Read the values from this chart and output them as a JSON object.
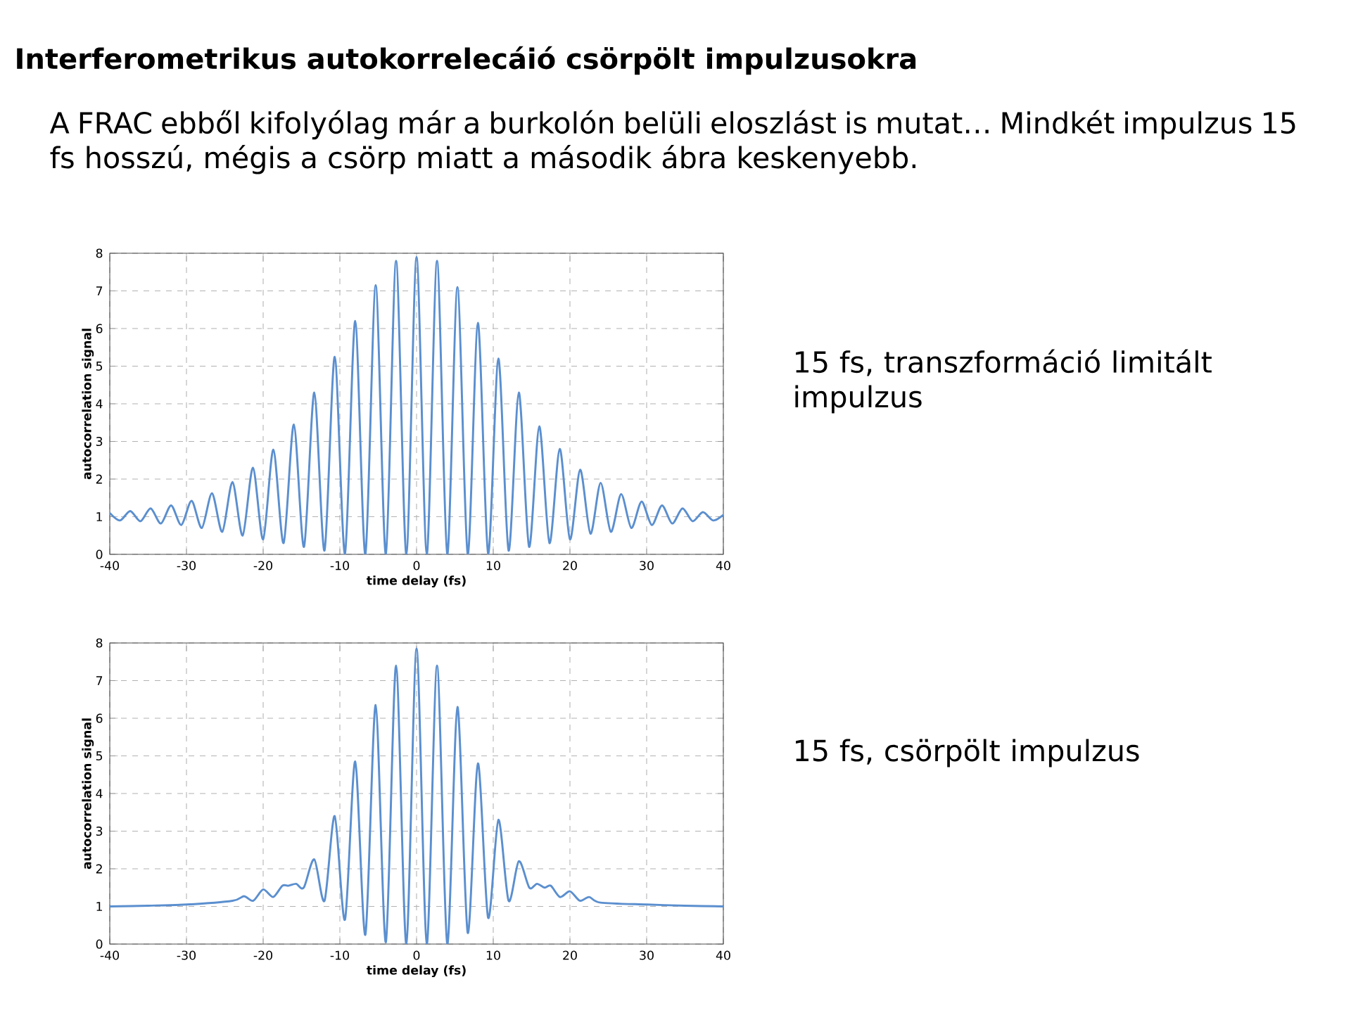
{
  "chart_data": [
    {
      "type": "line",
      "title": "Interferometrikus autokorrelecáió csörpölt impulzusokra",
      "subtitle": "A FRAC ebből kifolyólag már a burkolón belüli eloszlást is mutat… Mindkét impulzus 15 fs hosszú, mégis a csörp miatt a második ábra keskenyebb.",
      "annotations": [
        "15 fs, transzformáció limitált impulzus"
      ],
      "xlabel": "time delay (fs)",
      "ylabel": "autocorrelation signal",
      "xlim": [
        -40,
        40
      ],
      "ylim": [
        0,
        8
      ],
      "xticks": [
        -40,
        -30,
        -20,
        -10,
        0,
        10,
        20,
        30,
        40
      ],
      "yticks": [
        0,
        1,
        2,
        3,
        4,
        5,
        6,
        7,
        8
      ],
      "grid": true,
      "series": [
        {
          "color": "#5b8fcf",
          "x": [
            -40,
            -38.67,
            -37.33,
            -36,
            -34.67,
            -33.33,
            -32,
            -30.67,
            -29.33,
            -28,
            -26.67,
            -25.33,
            -24,
            -22.67,
            -21.33,
            -20,
            -18.67,
            -17.33,
            -16,
            -14.67,
            -13.33,
            -12,
            -10.67,
            -9.33,
            -8,
            -6.67,
            -5.33,
            -4,
            -2.67,
            -1.33,
            0,
            1.33,
            2.67,
            4,
            5.33,
            6.67,
            8,
            9.33,
            10.67,
            12,
            13.33,
            14.67,
            16,
            17.33,
            18.67,
            20,
            21.33,
            22.67,
            24,
            25.33,
            26.67,
            28,
            29.33,
            30.67,
            32,
            33.33,
            34.67,
            36,
            37.33,
            38.67,
            40
          ],
          "values": [
            1.1,
            0.9,
            1.15,
            0.88,
            1.22,
            0.82,
            1.3,
            0.78,
            1.42,
            0.7,
            1.62,
            0.6,
            1.92,
            0.5,
            2.3,
            0.4,
            2.78,
            0.3,
            3.45,
            0.2,
            4.3,
            0.1,
            5.25,
            0.02,
            6.2,
            0,
            7.15,
            0,
            7.8,
            0,
            7.9,
            0,
            7.8,
            0,
            7.1,
            0,
            6.15,
            0.02,
            5.2,
            0.1,
            4.3,
            0.2,
            3.4,
            0.3,
            2.8,
            0.4,
            2.25,
            0.55,
            1.9,
            0.6,
            1.6,
            0.7,
            1.4,
            0.78,
            1.3,
            0.82,
            1.22,
            0.88,
            1.12,
            0.9,
            1.05
          ]
        }
      ]
    },
    {
      "type": "line",
      "annotations": [
        "15 fs, csörpölt impulzus"
      ],
      "xlabel": "time delay (fs)",
      "ylabel": "autocorrelation signal",
      "xlim": [
        -40,
        40
      ],
      "ylim": [
        0,
        8
      ],
      "xticks": [
        -40,
        -30,
        -20,
        -10,
        0,
        10,
        20,
        30,
        40
      ],
      "yticks": [
        0,
        1,
        2,
        3,
        4,
        5,
        6,
        7,
        8
      ],
      "grid": true,
      "series": [
        {
          "color": "#5b8fcf",
          "x": [
            -40,
            -35,
            -30,
            -24,
            -22.5,
            -21.3,
            -20,
            -18.7,
            -17.5,
            -16.7,
            -15.7,
            -14.7,
            -13.33,
            -12,
            -10.67,
            -9.33,
            -8,
            -6.67,
            -5.33,
            -4,
            -2.67,
            -1.33,
            0,
            1.33,
            2.67,
            4,
            5.33,
            6.67,
            8,
            9.33,
            10.67,
            12,
            13.33,
            14.7,
            15.7,
            16.7,
            17.5,
            18.7,
            20,
            21.3,
            22.5,
            24,
            30,
            35,
            40
          ],
          "values": [
            1.0,
            1.02,
            1.05,
            1.15,
            1.27,
            1.15,
            1.45,
            1.25,
            1.55,
            1.55,
            1.6,
            1.5,
            2.25,
            1.15,
            3.4,
            0.65,
            4.85,
            0.25,
            6.35,
            0.05,
            7.4,
            0,
            7.85,
            0,
            7.4,
            0,
            6.3,
            0.3,
            4.8,
            0.7,
            3.3,
            1.15,
            2.2,
            1.5,
            1.6,
            1.5,
            1.55,
            1.25,
            1.4,
            1.15,
            1.25,
            1.1,
            1.05,
            1.02,
            1.0
          ]
        }
      ]
    }
  ]
}
